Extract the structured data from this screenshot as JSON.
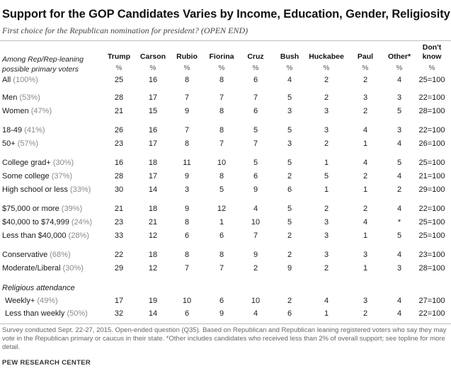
{
  "title": "Support for the GOP Candidates Varies by Income, Education, Gender, Religiosity",
  "subtitle": "First choice for the Republican nomination for president? (OPEN END)",
  "header": {
    "row_label": "Among Rep/Rep-leaning possible primary voters",
    "columns": [
      "Trump",
      "Carson",
      "Rubio",
      "Fiorina",
      "Cruz",
      "Bush",
      "Huckabee",
      "Paul",
      "Other*",
      "Don't know"
    ],
    "unit": "%"
  },
  "rows": [
    {
      "label": "All",
      "share": "(100%)",
      "values": [
        "25",
        "16",
        "8",
        "8",
        "6",
        "4",
        "2",
        "2",
        "4",
        "25=100"
      ]
    },
    {
      "label": "Men",
      "share": "(53%)",
      "values": [
        "28",
        "17",
        "7",
        "7",
        "7",
        "5",
        "2",
        "3",
        "3",
        "22=100"
      ]
    },
    {
      "label": "Women",
      "share": "(47%)",
      "values": [
        "21",
        "15",
        "9",
        "8",
        "6",
        "3",
        "3",
        "2",
        "5",
        "28=100"
      ]
    },
    {
      "label": "18-49",
      "share": "(41%)",
      "values": [
        "26",
        "16",
        "7",
        "8",
        "5",
        "5",
        "3",
        "4",
        "3",
        "22=100"
      ]
    },
    {
      "label": "50+",
      "share": "(57%)",
      "values": [
        "23",
        "17",
        "8",
        "7",
        "7",
        "3",
        "2",
        "1",
        "4",
        "26=100"
      ]
    },
    {
      "label": "College grad+",
      "share": "(30%)",
      "values": [
        "16",
        "18",
        "11",
        "10",
        "5",
        "5",
        "1",
        "4",
        "5",
        "25=100"
      ]
    },
    {
      "label": "Some college",
      "share": "(37%)",
      "values": [
        "28",
        "17",
        "9",
        "8",
        "6",
        "2",
        "5",
        "2",
        "4",
        "21=100"
      ]
    },
    {
      "label": "High school or less",
      "share": "(33%)",
      "values": [
        "30",
        "14",
        "3",
        "5",
        "9",
        "6",
        "1",
        "1",
        "2",
        "29=100"
      ]
    },
    {
      "label": "$75,000 or more",
      "share": "(39%)",
      "values": [
        "21",
        "18",
        "9",
        "12",
        "4",
        "5",
        "2",
        "2",
        "4",
        "22=100"
      ]
    },
    {
      "label": "$40,000 to $74,999",
      "share": "(24%)",
      "values": [
        "23",
        "21",
        "8",
        "1",
        "10",
        "5",
        "3",
        "4",
        "*",
        "25=100"
      ]
    },
    {
      "label": "Less than $40,000",
      "share": "(28%)",
      "values": [
        "33",
        "12",
        "6",
        "6",
        "7",
        "2",
        "3",
        "1",
        "5",
        "25=100"
      ]
    },
    {
      "label": "Conservative",
      "share": "(68%)",
      "values": [
        "22",
        "18",
        "8",
        "8",
        "9",
        "2",
        "3",
        "3",
        "4",
        "23=100"
      ]
    },
    {
      "label": "Moderate/Liberal",
      "share": "(30%)",
      "values": [
        "29",
        "12",
        "7",
        "7",
        "2",
        "9",
        "2",
        "1",
        "3",
        "28=100"
      ]
    },
    {
      "label": "Weekly+",
      "share": "(49%)",
      "values": [
        "17",
        "19",
        "10",
        "6",
        "10",
        "2",
        "4",
        "3",
        "4",
        "27=100"
      ]
    },
    {
      "label": "Less than weekly",
      "share": "(50%)",
      "values": [
        "32",
        "14",
        "6",
        "9",
        "4",
        "6",
        "1",
        "2",
        "4",
        "22=100"
      ]
    }
  ],
  "section_religious": "Religious attendance",
  "note": "Survey conducted Sept. 22-27, 2015. Open-ended question (Q35). Based on Republican and Republican leaning registered voters who say they may vote in the Republican primary or caucus in their state. *Other includes candidates who received less than 2% of overall support; see topline for more detail.",
  "source": "PEW RESEARCH CENTER"
}
